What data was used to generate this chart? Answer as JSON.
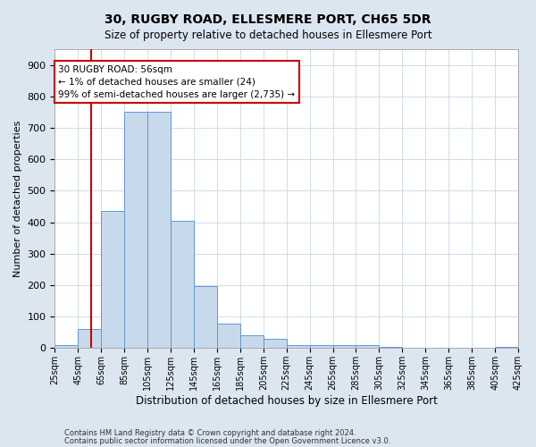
{
  "title1": "30, RUGBY ROAD, ELLESMERE PORT, CH65 5DR",
  "title2": "Size of property relative to detached houses in Ellesmere Port",
  "xlabel": "Distribution of detached houses by size in Ellesmere Port",
  "ylabel": "Number of detached properties",
  "footer1": "Contains HM Land Registry data © Crown copyright and database right 2024.",
  "footer2": "Contains public sector information licensed under the Open Government Licence v3.0.",
  "bin_edges": [
    25,
    45,
    65,
    85,
    105,
    125,
    145,
    165,
    185,
    205,
    225,
    245,
    265,
    285,
    305,
    325,
    345,
    365,
    385,
    405,
    425
  ],
  "bar_heights": [
    10,
    60,
    435,
    750,
    750,
    405,
    197,
    78,
    42,
    28,
    10,
    10,
    10,
    10,
    3,
    2,
    2,
    1,
    1,
    5
  ],
  "bar_color": "#c9d9ec",
  "bar_edge_color": "#5b9bd5",
  "property_line_x": 56,
  "property_line_color": "#cc0000",
  "annotation_text": "30 RUGBY ROAD: 56sqm\n← 1% of detached houses are smaller (24)\n99% of semi-detached houses are larger (2,735) →",
  "annotation_box_color": "#ffffff",
  "annotation_box_edge": "#cc0000",
  "ylim": [
    0,
    950
  ],
  "yticks": [
    0,
    100,
    200,
    300,
    400,
    500,
    600,
    700,
    800,
    900
  ],
  "grid_color": "#c8d8e8",
  "background_color": "#dce6f1",
  "plot_bg_color": "#ffffff",
  "title1_fontsize": 10,
  "title2_fontsize": 8.5,
  "ylabel_fontsize": 8,
  "xlabel_fontsize": 8.5,
  "footer_fontsize": 6
}
